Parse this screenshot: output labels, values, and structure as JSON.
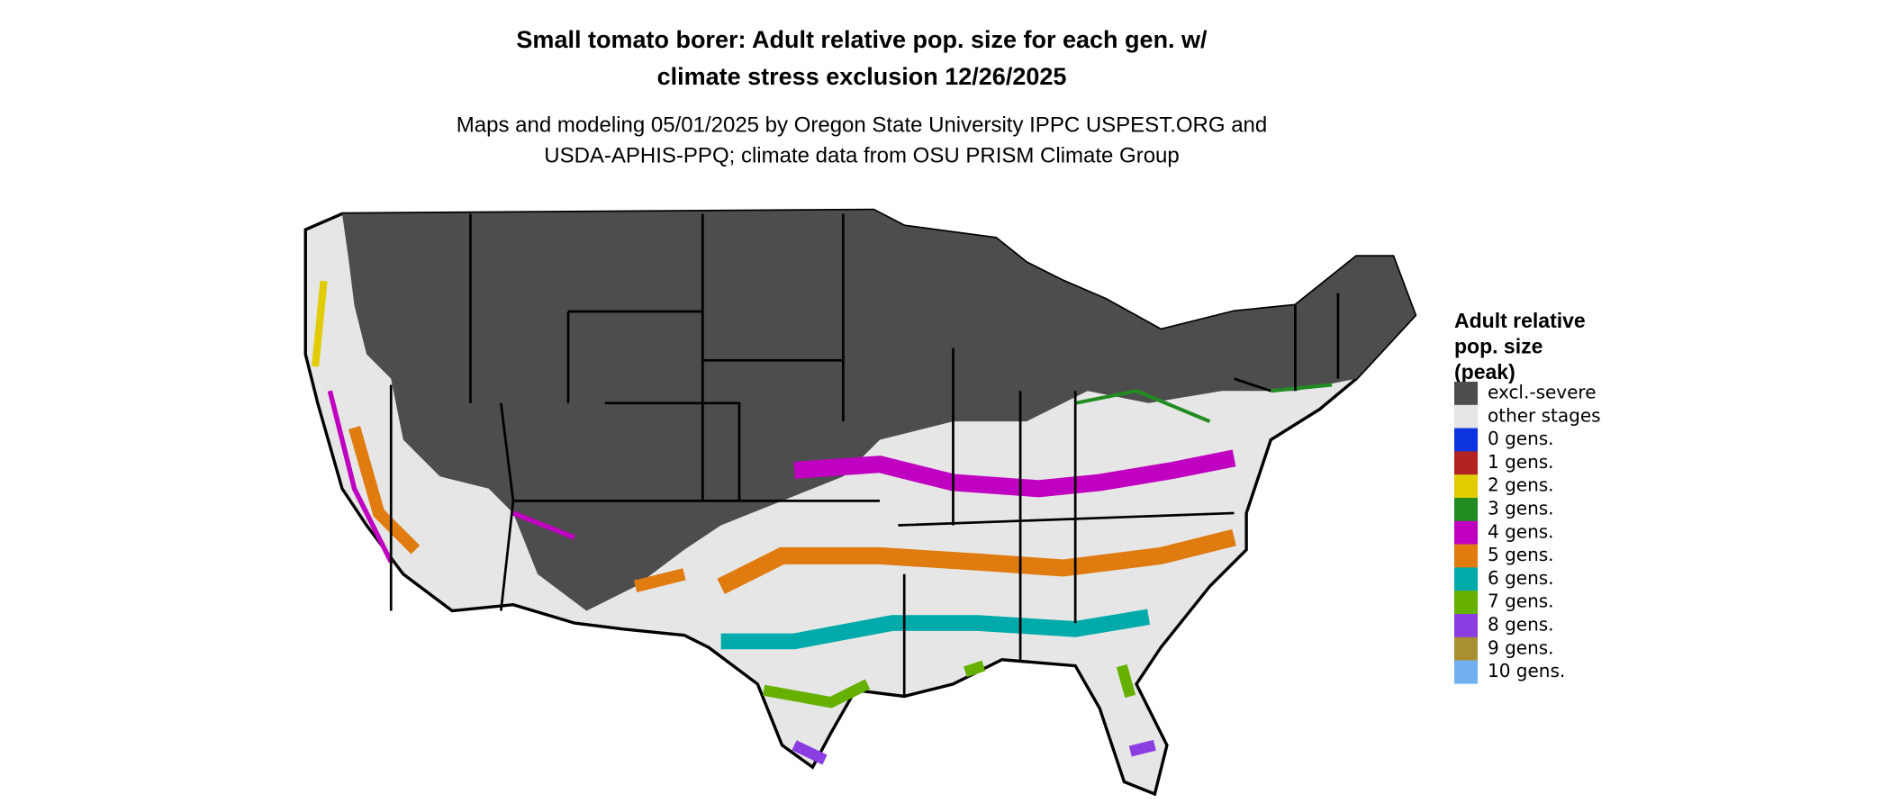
{
  "header": {
    "title": [
      "Small tomato borer: Adult relative pop. size for each gen. w/",
      "climate stress exclusion 12/26/2025"
    ],
    "subtitle": [
      "Maps and modeling 05/01/2025 by Oregon State University IPPC USPEST.ORG and",
      "USDA-APHIS-PPQ; climate data from OSU PRISM Climate Group"
    ]
  },
  "legend": {
    "title": [
      "Adult relative",
      "pop. size",
      "(peak)"
    ],
    "items": [
      {
        "label": "excl.-severe",
        "color": "#4d4d4d"
      },
      {
        "label": "other stages",
        "color": "#e6e6e6"
      },
      {
        "label": "0 gens.",
        "color": "#0b33e0"
      },
      {
        "label": "1 gens.",
        "color": "#b22222"
      },
      {
        "label": "2 gens.",
        "color": "#e0cc00"
      },
      {
        "label": "3 gens.",
        "color": "#228b22"
      },
      {
        "label": "4 gens.",
        "color": "#c000c0"
      },
      {
        "label": "5 gens.",
        "color": "#e07b10"
      },
      {
        "label": "6 gens.",
        "color": "#00aaaa"
      },
      {
        "label": "7 gens.",
        "color": "#66b000"
      },
      {
        "label": "8 gens.",
        "color": "#8a3de0"
      },
      {
        "label": "9 gens.",
        "color": "#a89030"
      },
      {
        "label": "10 gens.",
        "color": "#70b0f0"
      }
    ]
  }
}
